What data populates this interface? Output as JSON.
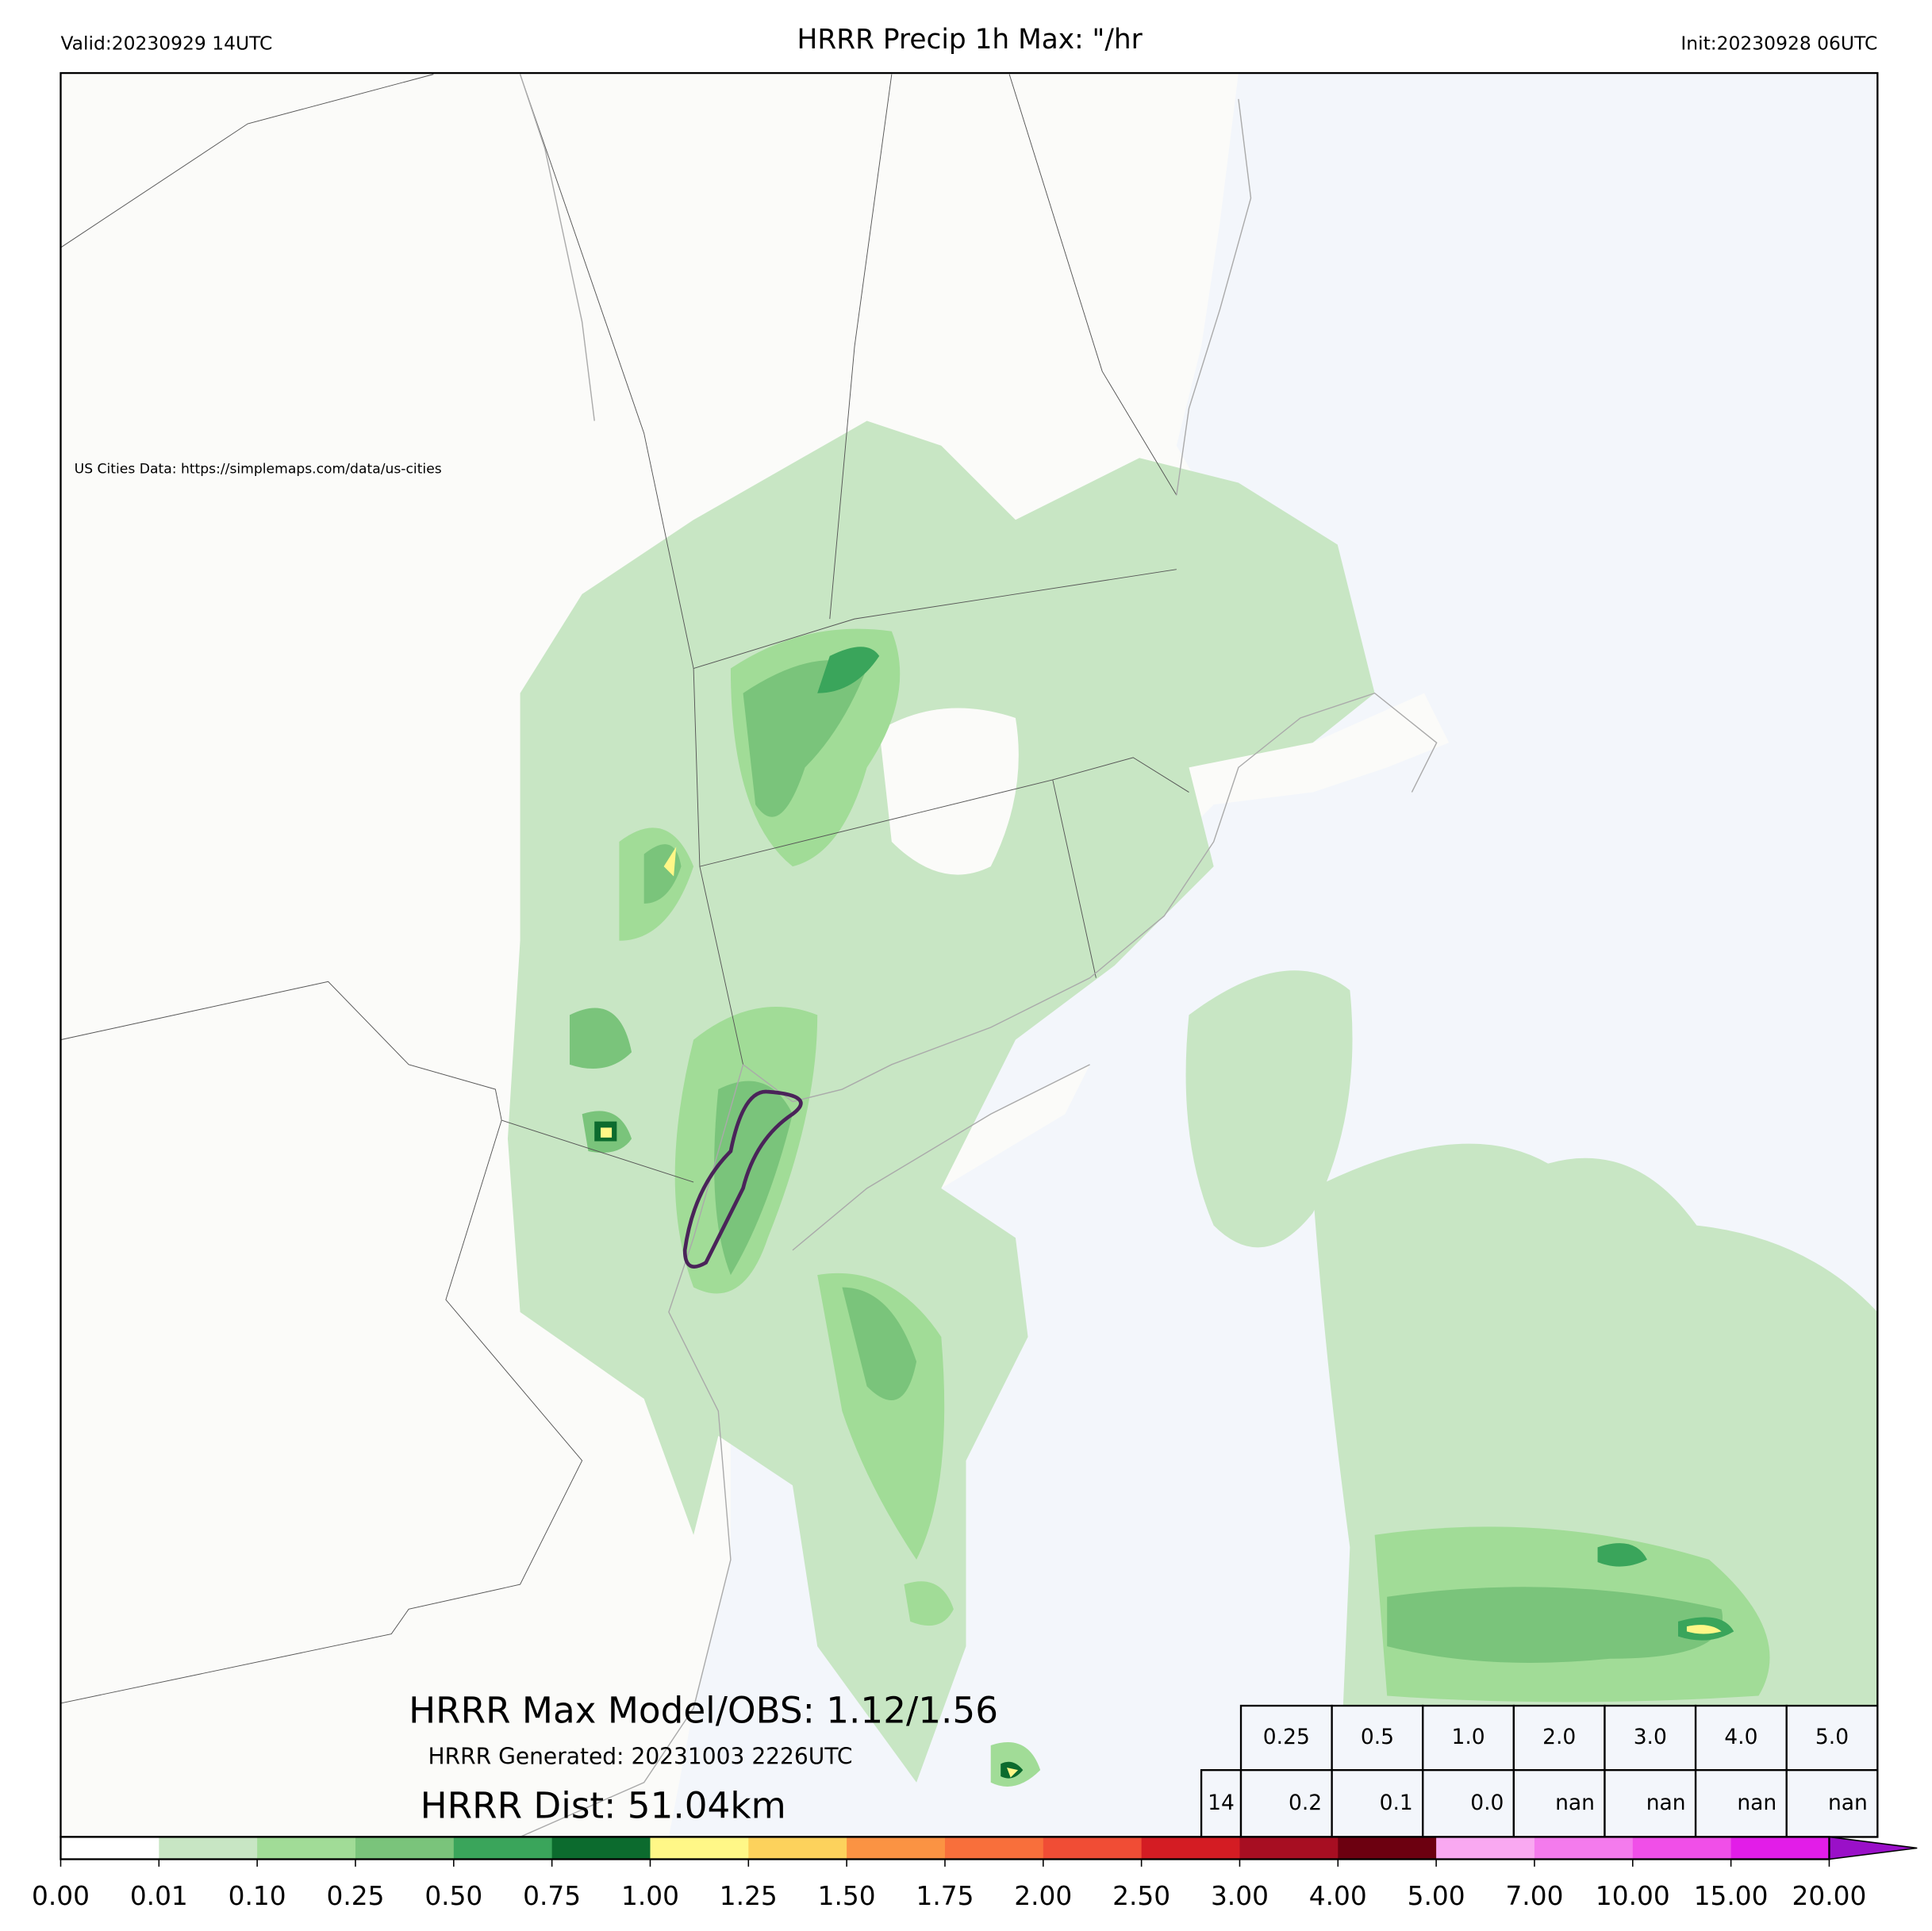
{
  "header": {
    "valid": "Valid:20230929 14UTC",
    "title": "HRRR Precip 1h Max: \"/hr",
    "init": "Init:20230928 06UTC"
  },
  "map": {
    "credit": "US Cities Data: https://simplemaps.com/data/us-cities",
    "max_model_obs": "HRRR Max Model/OBS: 1.12/1.56",
    "generated": "HRRR Generated: 20231003 2226UTC",
    "distance": "HRRR Dist: 51.04km"
  },
  "table": {
    "rows": [
      [
        "0.25",
        "0.5",
        "1.0",
        "2.0",
        "3.0",
        "4.0",
        "5.0"
      ],
      [
        "14",
        "0.2",
        "0.1",
        "0.0",
        "nan",
        "nan",
        "nan",
        "nan"
      ]
    ]
  },
  "colorbar": {
    "ticks": [
      {
        "value": 0,
        "label": "0.00"
      },
      {
        "value": 0.01,
        "label": "0.01"
      },
      {
        "value": 0.1,
        "label": "0.10"
      },
      {
        "value": 0.25,
        "label": "0.25"
      },
      {
        "value": 0.5,
        "label": "0.50"
      },
      {
        "value": 0.75,
        "label": "0.75"
      },
      {
        "value": 1,
        "label": "1.00"
      },
      {
        "value": 1.25,
        "label": "1.25"
      },
      {
        "value": 1.5,
        "label": "1.50"
      },
      {
        "value": 1.75,
        "label": "1.75"
      },
      {
        "value": 2,
        "label": "2.00"
      },
      {
        "value": 2.5,
        "label": "2.50"
      },
      {
        "value": 3,
        "label": "3.00"
      },
      {
        "value": 4,
        "label": "4.00"
      },
      {
        "value": 5,
        "label": "5.00"
      },
      {
        "value": 7,
        "label": "7.00"
      },
      {
        "value": 10,
        "label": "10.00"
      },
      {
        "value": 15,
        "label": "15.00"
      },
      {
        "value": 20,
        "label": "20.00"
      }
    ],
    "colors": [
      "#ffffff",
      "#c8e6c4",
      "#a1dc97",
      "#7ac47b",
      "#3aa55b",
      "#0c6b2e",
      "#fff787",
      "#fdd25c",
      "#fb9343",
      "#f86f3b",
      "#f04d35",
      "#d41c23",
      "#a70e22",
      "#6c0010",
      "#f9a9f1",
      "#f47bed",
      "#f04fe8",
      "#e21de8"
    ],
    "extend_color": "#9a10c8"
  }
}
